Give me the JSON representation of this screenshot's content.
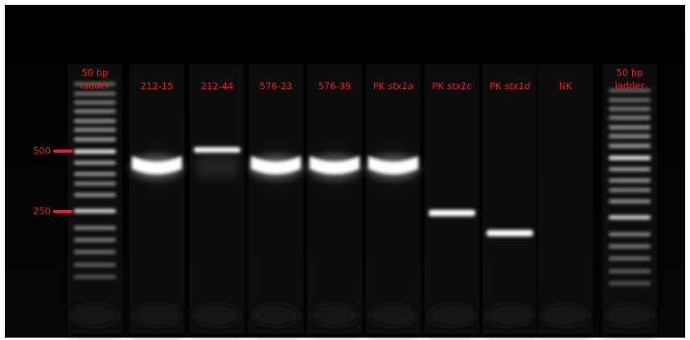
{
  "lanes": [
    {
      "label": [
        "50 bp",
        "ladder"
      ]
    },
    {
      "label": "212-15"
    },
    {
      "label": "212-44"
    },
    {
      "label": "576-23"
    },
    {
      "label": "576-39"
    },
    {
      "label": "PK",
      "gene": "stx1a"
    },
    {
      "label": "PK",
      "gene": "stx1c"
    },
    {
      "label": "PK",
      "gene": "stx1d"
    },
    {
      "label": "NK"
    },
    {
      "label": [
        "50 bp",
        "ladder"
      ]
    }
  ],
  "markers": [
    {
      "label": "500"
    },
    {
      "label": "250"
    }
  ]
}
